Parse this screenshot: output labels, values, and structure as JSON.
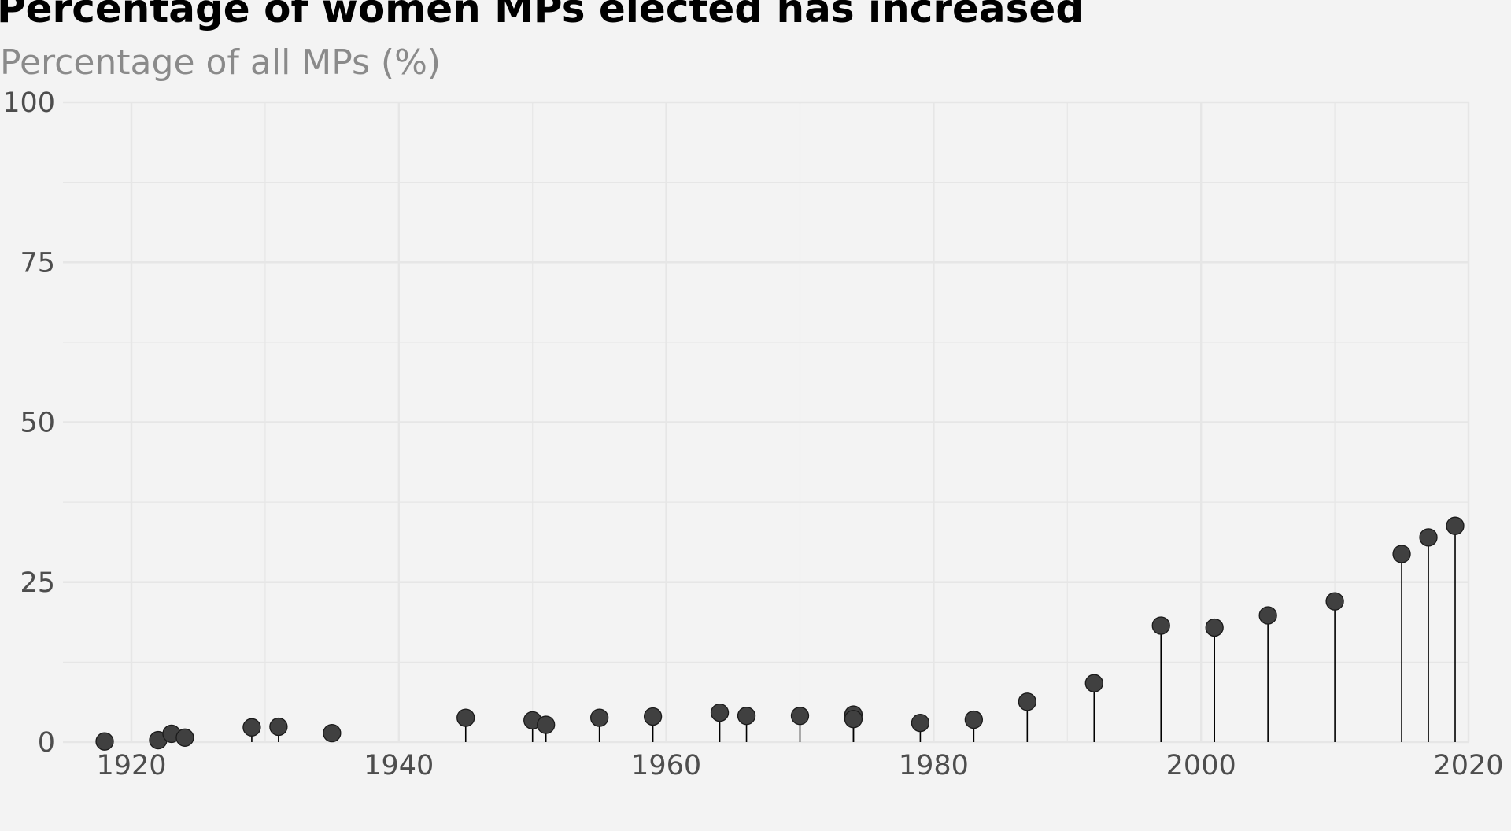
{
  "chart_data": {
    "type": "scatter",
    "style": "lollipop",
    "title": "Percentage of women MPs elected has increased",
    "subtitle": "Percentage of all MPs (%)",
    "xlabel": "",
    "ylabel": "Percentage of all MPs (%)",
    "xlim": [
      1915,
      2020
    ],
    "ylim": [
      0,
      100
    ],
    "x_ticks": [
      1920,
      1940,
      1960,
      1980,
      2000,
      2020
    ],
    "y_ticks": [
      0,
      25,
      50,
      75,
      100
    ],
    "grid": true,
    "series": [
      {
        "name": "Women MPs",
        "x": [
          1918,
          1922,
          1923,
          1924,
          1929,
          1931,
          1935,
          1945,
          1950,
          1951,
          1955,
          1959,
          1964,
          1966,
          1970,
          1974,
          1974,
          1979,
          1983,
          1987,
          1992,
          1997,
          2001,
          2005,
          2010,
          2015,
          2017,
          2019
        ],
        "y": [
          0.1,
          0.3,
          1.3,
          0.7,
          2.3,
          2.4,
          1.4,
          3.8,
          3.4,
          2.7,
          3.8,
          4.0,
          4.6,
          4.1,
          4.1,
          4.3,
          3.6,
          3.0,
          3.5,
          6.3,
          9.2,
          18.2,
          17.9,
          19.8,
          22.0,
          29.4,
          32.0,
          33.8
        ],
        "color": "#404040"
      }
    ]
  },
  "colors": {
    "background": "#f3f3f3",
    "grid": "#e6e6e6",
    "point_fill": "#404040",
    "point_stroke": "#1a1a1a",
    "stem": "#000000"
  }
}
